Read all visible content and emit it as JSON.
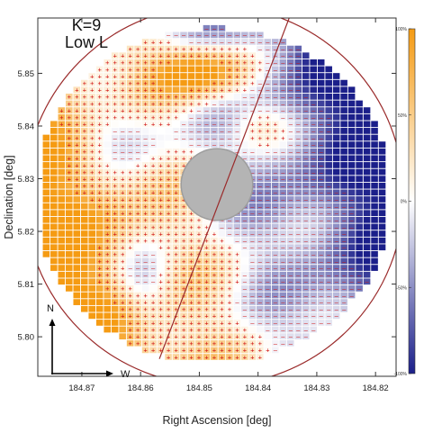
{
  "chart_data": {
    "type": "heatmap",
    "xlabel": "Right Ascension [deg]",
    "ylabel": "Declination [deg]",
    "x_ticks": [
      184.87,
      184.86,
      184.85,
      184.84,
      184.83,
      184.82
    ],
    "y_ticks": [
      5.8,
      5.81,
      5.82,
      5.83,
      5.84,
      5.85
    ],
    "x_tick_labels": [
      "184.87",
      "184.86",
      "184.85",
      "184.84",
      "184.83",
      "184.82"
    ],
    "y_tick_labels": [
      "5.80",
      "5.81",
      "5.82",
      "5.83",
      "5.84",
      "5.85"
    ],
    "xlim": [
      184.8775,
      184.8165
    ],
    "ylim": [
      5.7925,
      5.8605
    ],
    "x_inverted": true,
    "annotation": {
      "line1": "K=9",
      "line2": "Low L"
    },
    "colorbar": {
      "ticks": [
        "100%",
        "50%",
        "0%",
        "-50%",
        "-100%"
      ],
      "range": [
        -100,
        100
      ],
      "high_color": "#f59b13",
      "mid_color": "#ffffff",
      "low_color": "#1b1f8a"
    },
    "masked_region": {
      "ra": 184.847,
      "dec": 5.8289,
      "radius_deg": 0.0061,
      "color": "#b4b4b4"
    },
    "outer_circle": {
      "ra": 184.8475,
      "dec": 5.8268,
      "radius_deg": 0.0323,
      "color": "#9a2a2a"
    },
    "dividing_lines": [
      {
        "from": [
          184.8568,
          5.7958
        ],
        "to": [
          184.8346,
          5.8608
        ]
      }
    ],
    "grid": {
      "ra_step_deg": 0.0013,
      "dec_step_deg": 0.0013
    },
    "sign_rule": "'+' marks cells with positive value, '-' marks cells with negative value",
    "field_description": "Positive values concentrate on the east (left) side and a band on the north-east; negative values concentrate on the west (right) side and south-west."
  },
  "compass": {
    "north": "N",
    "west": "W"
  }
}
